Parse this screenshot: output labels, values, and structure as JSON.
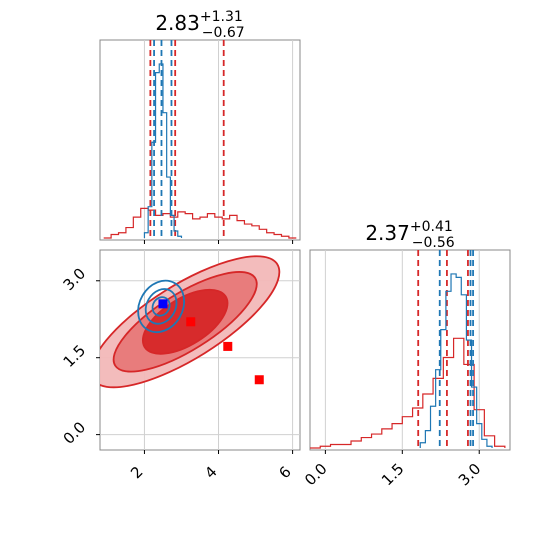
{
  "chart_data": [
    {
      "panel": "marginal-x",
      "type": "line",
      "title": "2.83",
      "title_sup": "+1.31",
      "title_sub": "−0.67",
      "xlim": [
        0.8,
        6.2
      ],
      "x_ticks": [
        2,
        4,
        6
      ],
      "grid": true,
      "series": [
        {
          "color": "#1f77b4",
          "style": "step",
          "x": [
            2.05,
            2.15,
            2.25,
            2.35,
            2.45,
            2.55,
            2.65,
            2.75,
            2.85,
            2.95
          ],
          "y": [
            0.03,
            0.18,
            0.55,
            0.95,
            1.0,
            0.72,
            0.35,
            0.13,
            0.04,
            0.01
          ],
          "quantiles": [
            2.26,
            2.46,
            2.73
          ]
        },
        {
          "color": "#d62728",
          "style": "step",
          "x": [
            1.0,
            1.2,
            1.4,
            1.6,
            1.8,
            2.0,
            2.2,
            2.4,
            2.6,
            2.8,
            3.0,
            3.2,
            3.4,
            3.6,
            3.8,
            4.0,
            4.2,
            4.4,
            4.6,
            4.8,
            5.0,
            5.2,
            5.4,
            5.6,
            5.8,
            6.0
          ],
          "y": [
            0.0,
            0.02,
            0.03,
            0.06,
            0.12,
            0.17,
            0.16,
            0.13,
            0.14,
            0.12,
            0.15,
            0.14,
            0.11,
            0.12,
            0.14,
            0.12,
            0.11,
            0.13,
            0.1,
            0.08,
            0.07,
            0.05,
            0.03,
            0.02,
            0.01,
            0.0
          ],
          "quantiles": [
            2.16,
            2.83,
            4.14
          ]
        }
      ]
    },
    {
      "panel": "joint",
      "type": "scatter",
      "xlim": [
        0.8,
        6.2
      ],
      "ylim": [
        -0.3,
        3.6
      ],
      "x_ticks": [
        2,
        4,
        6
      ],
      "y_ticks": [
        0.0,
        1.5,
        3.0
      ],
      "grid": true,
      "contours": [
        {
          "color": "#d62728",
          "center": [
            3.1,
            2.2
          ],
          "levels": [
            {
              "a": 2.5,
              "b": 0.72,
              "angle_deg": -32,
              "fill": "#f2b8b8"
            },
            {
              "a": 1.9,
              "b": 0.55,
              "angle_deg": -32,
              "fill": "#e77878"
            },
            {
              "a": 1.1,
              "b": 0.45,
              "angle_deg": -32,
              "fill": "#d62728"
            }
          ]
        },
        {
          "color": "#1f77b4",
          "center": [
            2.45,
            2.5
          ],
          "levels": [
            {
              "a": 0.62,
              "b": 0.42,
              "angle_deg": -60
            },
            {
              "a": 0.42,
              "b": 0.28,
              "angle_deg": -60
            },
            {
              "a": 0.22,
              "b": 0.16,
              "angle_deg": -60
            }
          ]
        }
      ],
      "markers": [
        {
          "x": 2.5,
          "y": 2.55,
          "color": "#0000ff"
        },
        {
          "x": 3.25,
          "y": 2.2,
          "color": "#ff0000"
        },
        {
          "x": 4.25,
          "y": 1.72,
          "color": "#ff0000"
        },
        {
          "x": 5.1,
          "y": 1.07,
          "color": "#ff0000"
        }
      ]
    },
    {
      "panel": "marginal-y",
      "type": "line",
      "title": "2.37",
      "title_sup": "+0.41",
      "title_sub": "−0.56",
      "xlim": [
        -0.3,
        3.6
      ],
      "x_ticks": [
        0.0,
        1.5,
        3.0
      ],
      "grid": true,
      "series": [
        {
          "color": "#1f77b4",
          "style": "step",
          "x": [
            1.9,
            2.0,
            2.1,
            2.2,
            2.3,
            2.4,
            2.5,
            2.6,
            2.7,
            2.8,
            2.9,
            3.0,
            3.1,
            3.2
          ],
          "y": [
            0.03,
            0.1,
            0.24,
            0.45,
            0.68,
            0.9,
            1.0,
            0.98,
            0.88,
            0.62,
            0.35,
            0.14,
            0.05,
            0.01
          ],
          "quantiles": [
            2.23,
            2.83,
            2.88
          ]
        },
        {
          "color": "#d62728",
          "style": "step",
          "x": [
            -0.2,
            0.0,
            0.2,
            0.4,
            0.6,
            0.8,
            1.0,
            1.2,
            1.4,
            1.6,
            1.8,
            2.0,
            2.2,
            2.4,
            2.6,
            2.8,
            3.0,
            3.2,
            3.4
          ],
          "y": [
            0.0,
            0.01,
            0.02,
            0.02,
            0.04,
            0.06,
            0.08,
            0.11,
            0.14,
            0.18,
            0.23,
            0.31,
            0.4,
            0.52,
            0.63,
            0.48,
            0.22,
            0.07,
            0.01
          ],
          "quantiles": [
            1.81,
            2.37,
            2.78
          ]
        }
      ]
    }
  ]
}
